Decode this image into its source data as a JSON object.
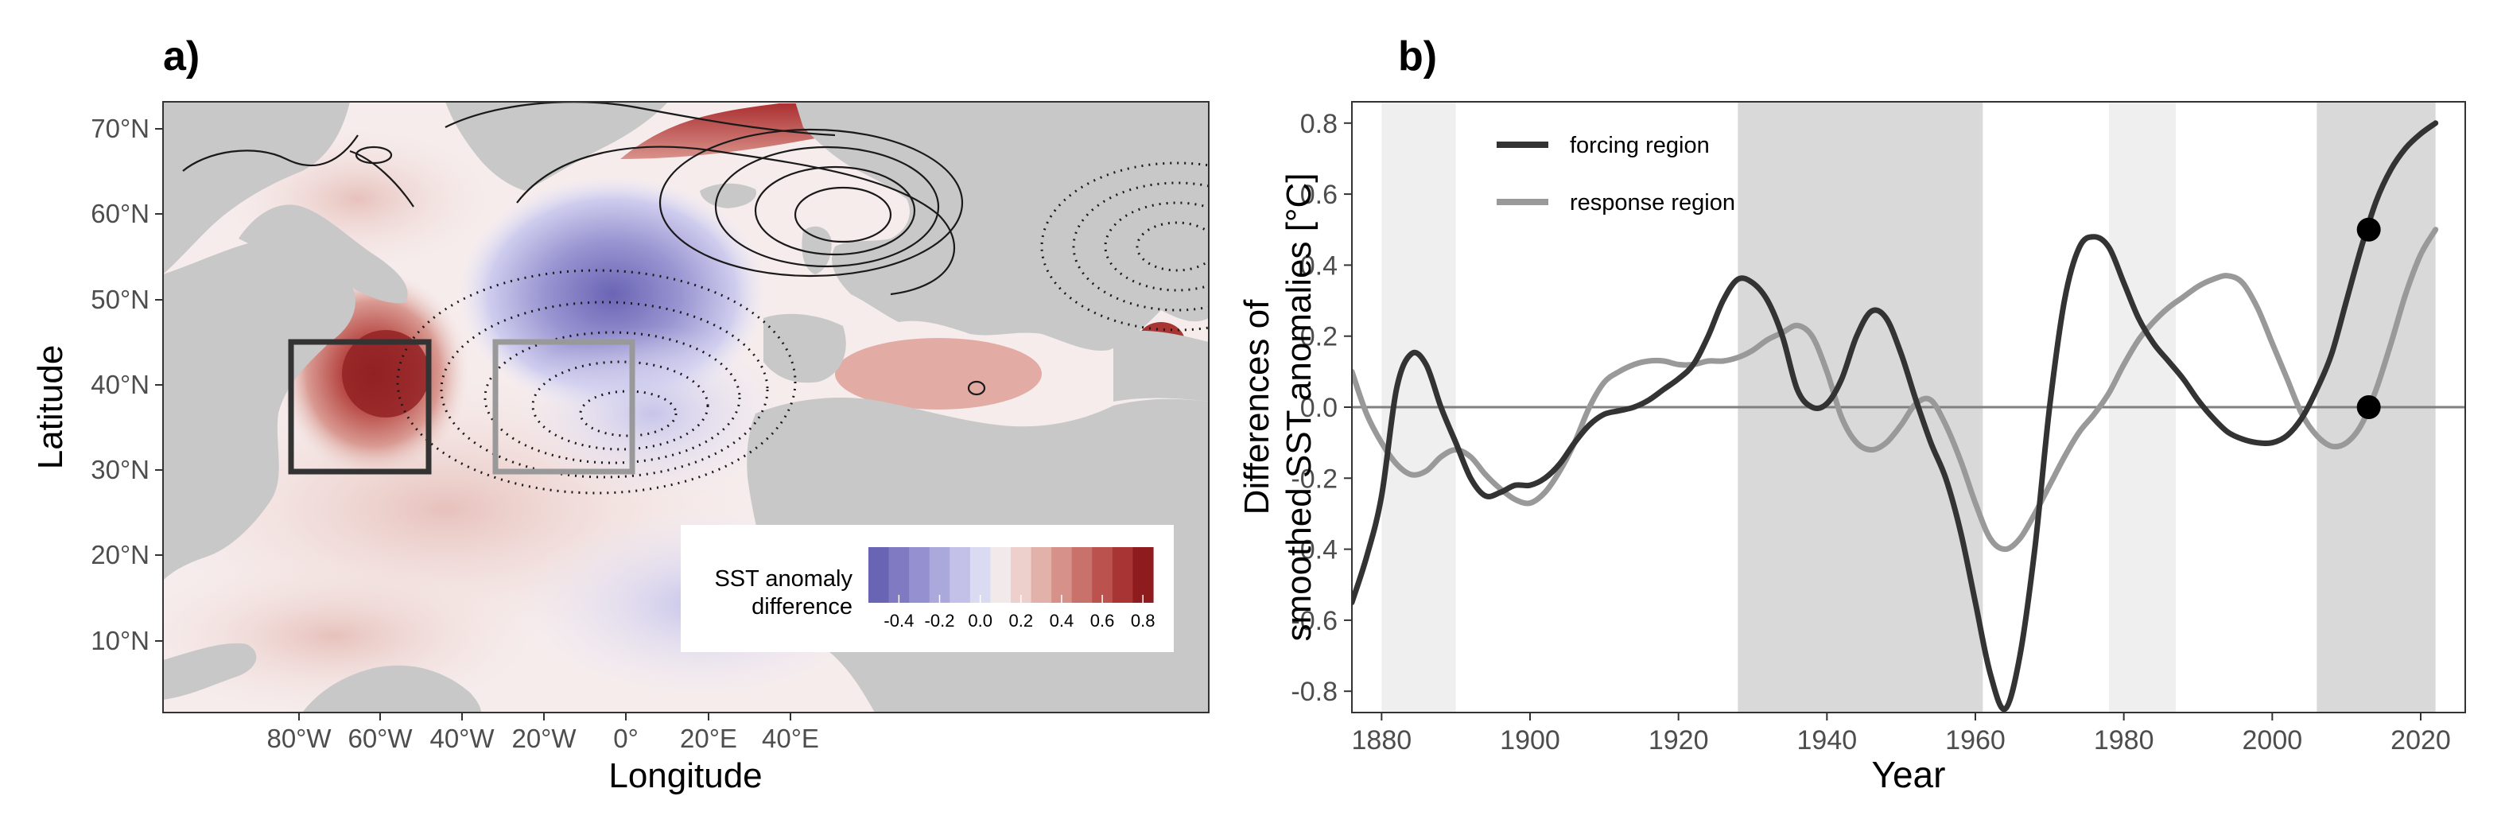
{
  "panel_a": {
    "label": "a)",
    "xlabel": "Longitude",
    "ylabel": "Latitude",
    "xticks": [
      "80°W",
      "60°W",
      "40°W",
      "20°W",
      "0°",
      "20°E",
      "40°E"
    ],
    "yticks": [
      "10°N",
      "20°N",
      "30°N",
      "40°N",
      "50°N",
      "60°N",
      "70°N"
    ],
    "colorbar": {
      "title_line1": "SST anomaly",
      "title_line2": "difference",
      "ticks": [
        "-0.4",
        "-0.2",
        "0.0",
        "0.2",
        "0.4",
        "0.6",
        "0.8"
      ],
      "colors": [
        "#6a64b4",
        "#7f7ac2",
        "#9590cf",
        "#aba8dc",
        "#c3c1e8",
        "#dbdaf3",
        "#f2eaea",
        "#edd0cb",
        "#e2b1aa",
        "#d6918a",
        "#c9716b",
        "#bb524e",
        "#a83434",
        "#8e1c1e"
      ]
    },
    "colors": {
      "land": "#c8c8c8",
      "forcing_box": "#333333",
      "response_box": "#999999",
      "contour": "#1a1a1a"
    }
  },
  "chart_data": [
    {
      "panel": "b)",
      "type": "line",
      "xlabel": "Year",
      "ylabel_line1": "Differences of",
      "ylabel_line2": "smoothed SST anomalies [°C]",
      "xlim": [
        1876,
        2026
      ],
      "ylim": [
        -0.86,
        0.86
      ],
      "xticks": [
        1880,
        1900,
        1920,
        1940,
        1960,
        1980,
        2000,
        2020
      ],
      "yticks": [
        "-0.8",
        "-0.6",
        "-0.4",
        "-0.2",
        "0.0",
        "0.2",
        "0.4",
        "0.6",
        "0.8"
      ],
      "zero_line": 0,
      "shaded_periods": [
        {
          "start": 1880,
          "end": 1890,
          "shade": "light"
        },
        {
          "start": 1928,
          "end": 1961,
          "shade": "dark"
        },
        {
          "start": 1978,
          "end": 1987,
          "shade": "light"
        },
        {
          "start": 2006,
          "end": 2022,
          "shade": "dark"
        }
      ],
      "legend_position": "top-left",
      "series": [
        {
          "name": "forcing region",
          "color": "#333333",
          "x": [
            1876,
            1878,
            1880,
            1882,
            1884,
            1886,
            1888,
            1890,
            1892,
            1894,
            1896,
            1898,
            1900,
            1902,
            1904,
            1906,
            1908,
            1910,
            1912,
            1914,
            1916,
            1918,
            1920,
            1922,
            1924,
            1926,
            1928,
            1930,
            1932,
            1934,
            1936,
            1938,
            1940,
            1942,
            1944,
            1946,
            1948,
            1950,
            1952,
            1954,
            1956,
            1958,
            1960,
            1962,
            1964,
            1966,
            1968,
            1970,
            1972,
            1974,
            1976,
            1978,
            1980,
            1982,
            1984,
            1986,
            1988,
            1990,
            1992,
            1994,
            1996,
            1998,
            2000,
            2002,
            2004,
            2006,
            2008,
            2010,
            2012,
            2014,
            2016,
            2018,
            2020,
            2022
          ],
          "y": [
            -0.55,
            -0.42,
            -0.25,
            0.05,
            0.15,
            0.12,
            0.0,
            -0.1,
            -0.2,
            -0.25,
            -0.24,
            -0.22,
            -0.22,
            -0.2,
            -0.16,
            -0.1,
            -0.05,
            -0.02,
            -0.01,
            0.0,
            0.02,
            0.05,
            0.08,
            0.12,
            0.2,
            0.3,
            0.36,
            0.35,
            0.3,
            0.2,
            0.05,
            0.0,
            0.01,
            0.08,
            0.2,
            0.27,
            0.25,
            0.15,
            0.02,
            -0.1,
            -0.2,
            -0.35,
            -0.55,
            -0.75,
            -0.85,
            -0.7,
            -0.4,
            0.0,
            0.3,
            0.45,
            0.48,
            0.45,
            0.35,
            0.25,
            0.18,
            0.13,
            0.08,
            0.02,
            -0.03,
            -0.07,
            -0.09,
            -0.1,
            -0.1,
            -0.08,
            -0.03,
            0.05,
            0.15,
            0.3,
            0.45,
            0.58,
            0.67,
            0.73,
            0.77,
            0.8
          ]
        },
        {
          "name": "response region",
          "color": "#999999",
          "x": [
            1876,
            1878,
            1880,
            1882,
            1884,
            1886,
            1888,
            1890,
            1892,
            1894,
            1896,
            1898,
            1900,
            1902,
            1904,
            1906,
            1908,
            1910,
            1912,
            1914,
            1916,
            1918,
            1920,
            1922,
            1924,
            1926,
            1928,
            1930,
            1932,
            1934,
            1936,
            1938,
            1940,
            1942,
            1944,
            1946,
            1948,
            1950,
            1952,
            1954,
            1956,
            1958,
            1960,
            1962,
            1964,
            1966,
            1968,
            1970,
            1972,
            1974,
            1976,
            1978,
            1980,
            1982,
            1984,
            1986,
            1988,
            1990,
            1992,
            1994,
            1996,
            1998,
            2000,
            2002,
            2004,
            2006,
            2008,
            2010,
            2012,
            2014,
            2016,
            2018,
            2020,
            2022
          ],
          "y": [
            0.1,
            -0.02,
            -0.1,
            -0.16,
            -0.19,
            -0.18,
            -0.14,
            -0.12,
            -0.14,
            -0.19,
            -0.23,
            -0.26,
            -0.27,
            -0.24,
            -0.18,
            -0.1,
            0.0,
            0.07,
            0.1,
            0.12,
            0.13,
            0.13,
            0.12,
            0.12,
            0.13,
            0.13,
            0.14,
            0.16,
            0.19,
            0.21,
            0.23,
            0.2,
            0.1,
            -0.03,
            -0.1,
            -0.12,
            -0.1,
            -0.05,
            0.01,
            0.02,
            -0.05,
            -0.15,
            -0.27,
            -0.37,
            -0.4,
            -0.37,
            -0.3,
            -0.22,
            -0.14,
            -0.07,
            -0.02,
            0.04,
            0.12,
            0.19,
            0.24,
            0.28,
            0.31,
            0.34,
            0.36,
            0.37,
            0.35,
            0.28,
            0.18,
            0.08,
            -0.02,
            -0.08,
            -0.11,
            -0.1,
            -0.05,
            0.05,
            0.18,
            0.32,
            0.43,
            0.5
          ]
        }
      ],
      "points": [
        {
          "x": 2013,
          "y": 0.5
        },
        {
          "x": 2013,
          "y": 0.0
        }
      ]
    }
  ]
}
